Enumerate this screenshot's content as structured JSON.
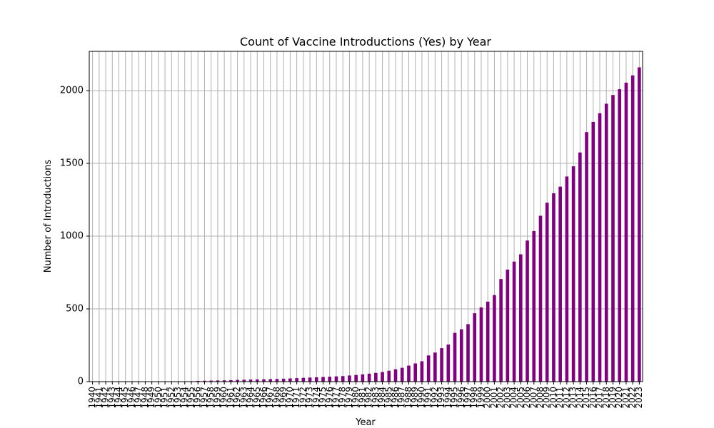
{
  "chart_data": {
    "type": "bar",
    "title": "Count of Vaccine Introductions (Yes) by Year",
    "xlabel": "Year",
    "ylabel": "Number of Introductions",
    "ylim": [
      0,
      2270
    ],
    "yticks": [
      0,
      500,
      1000,
      1500,
      2000
    ],
    "grid": true,
    "legend": "none",
    "categories": [
      "1940",
      "1941",
      "1942",
      "1943",
      "1944",
      "1945",
      "1946",
      "1947",
      "1948",
      "1949",
      "1950",
      "1951",
      "1952",
      "1953",
      "1954",
      "1955",
      "1956",
      "1957",
      "1958",
      "1959",
      "1960",
      "1961",
      "1962",
      "1963",
      "1964",
      "1965",
      "1966",
      "1967",
      "1968",
      "1969",
      "1970",
      "1971",
      "1972",
      "1973",
      "1974",
      "1975",
      "1976",
      "1977",
      "1978",
      "1979",
      "1980",
      "1981",
      "1982",
      "1983",
      "1984",
      "1985",
      "1986",
      "1987",
      "1988",
      "1989",
      "1990",
      "1991",
      "1992",
      "1993",
      "1994",
      "1995",
      "1996",
      "1997",
      "1998",
      "1999",
      "2000",
      "2001",
      "2002",
      "2003",
      "2004",
      "2005",
      "2006",
      "2007",
      "2008",
      "2009",
      "2010",
      "2011",
      "2012",
      "2013",
      "2014",
      "2015",
      "2016",
      "2017",
      "2018",
      "2019",
      "2020",
      "2021",
      "2022",
      "2023"
    ],
    "series": [
      {
        "values": [
          1,
          1,
          1,
          1,
          1,
          1,
          1,
          1,
          1,
          1,
          1,
          1,
          1,
          1,
          2,
          3,
          5,
          6,
          7,
          8,
          9,
          10,
          12,
          13,
          14,
          15,
          16,
          17,
          18,
          20,
          22,
          24,
          26,
          28,
          30,
          32,
          34,
          36,
          38,
          42,
          46,
          50,
          55,
          60,
          66,
          75,
          85,
          95,
          110,
          125,
          140,
          180,
          200,
          230,
          255,
          335,
          360,
          395,
          470,
          510,
          550,
          595,
          705,
          770,
          825,
          875,
          970,
          1035,
          1140,
          1230,
          1295,
          1340,
          1410,
          1480,
          1575,
          1715,
          1785,
          1845,
          1910,
          1970,
          2010,
          2055,
          2105,
          2160
        ],
        "color": "#800080"
      }
    ]
  }
}
